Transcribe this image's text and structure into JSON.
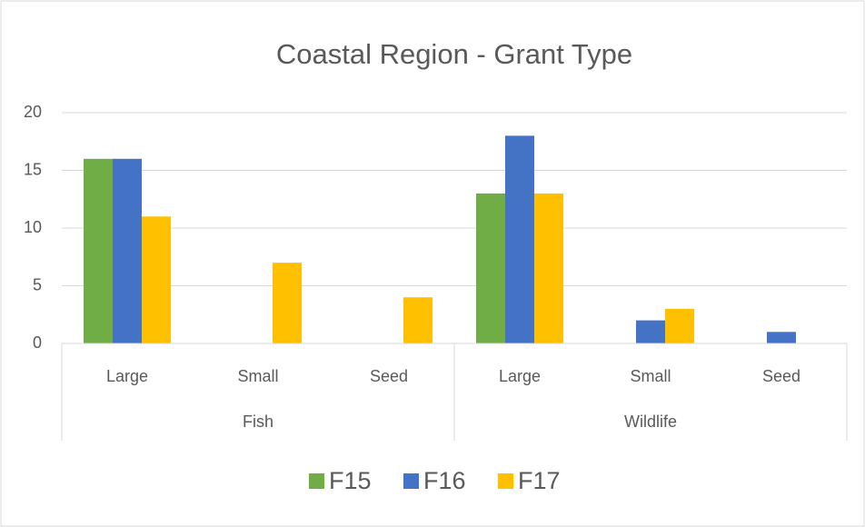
{
  "chart_data": {
    "type": "bar",
    "title": "Coastal Region - Grant Type",
    "category_groups": [
      {
        "name": "Fish",
        "categories": [
          "Large",
          "Small",
          "Seed"
        ]
      },
      {
        "name": "Wildlife",
        "categories": [
          "Large",
          "Small",
          "Seed"
        ]
      }
    ],
    "series": [
      {
        "name": "F15",
        "color": "#70ad47",
        "values": [
          16,
          0,
          0,
          13,
          0,
          0
        ]
      },
      {
        "name": "F16",
        "color": "#4472c4",
        "values": [
          16,
          0,
          0,
          18,
          2,
          1
        ]
      },
      {
        "name": "F17",
        "color": "#ffc000",
        "values": [
          11,
          7,
          4,
          13,
          3,
          0
        ]
      }
    ],
    "ylim": [
      0,
      20
    ],
    "yticks": [
      0,
      5,
      10,
      15,
      20
    ],
    "grid": true,
    "legend": "bottom"
  }
}
